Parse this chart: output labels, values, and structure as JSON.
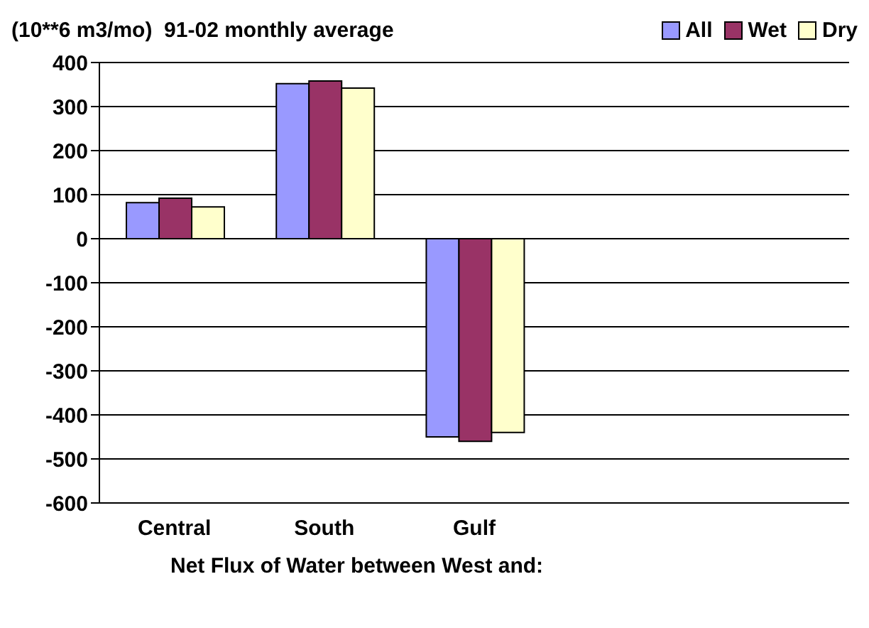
{
  "chart_data": {
    "type": "bar",
    "title": "(10**6 m3/mo)  91-02 monthly average",
    "xlabel": "Net Flux of Water between West and:",
    "categories": [
      "Central",
      "South",
      "Gulf",
      null,
      null
    ],
    "series": [
      {
        "name": "All",
        "color": "#9999ff",
        "values": [
          82,
          352,
          -450,
          null,
          null
        ]
      },
      {
        "name": "Wet",
        "color": "#993366",
        "values": [
          92,
          358,
          -460,
          null,
          null
        ]
      },
      {
        "name": "Dry",
        "color": "#ffffcc",
        "values": [
          72,
          342,
          -440,
          null,
          null
        ]
      }
    ],
    "ylim": [
      -600,
      400
    ],
    "yticks": [
      -600,
      -500,
      -400,
      -300,
      -200,
      -100,
      0,
      100,
      200,
      300,
      400
    ],
    "grid": "y",
    "legend": "top right"
  }
}
